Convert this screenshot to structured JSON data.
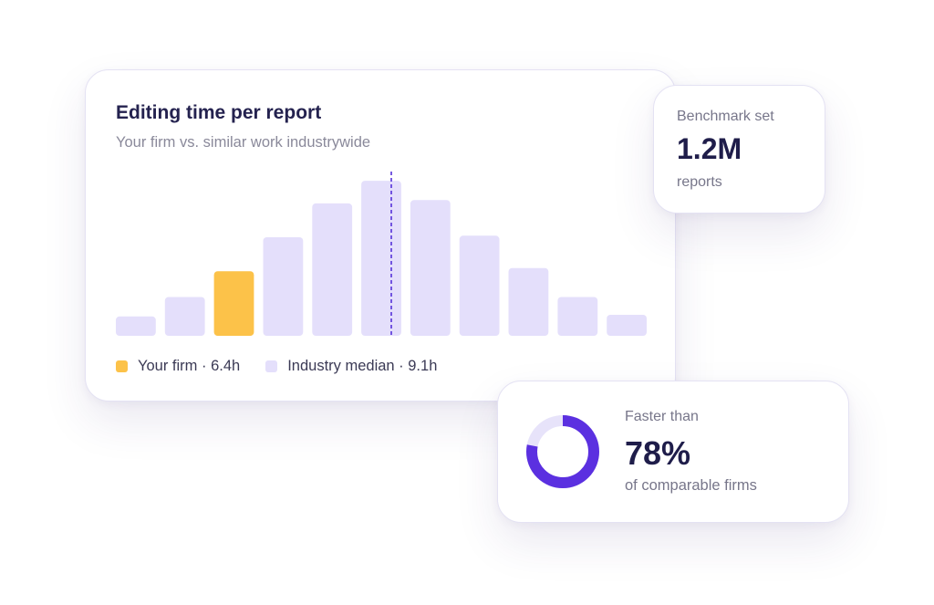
{
  "main_card": {
    "title": "Editing time per report",
    "subtitle": "Your firm vs. similar work industrywide"
  },
  "chart_data": {
    "type": "bar",
    "title": "Editing time per report",
    "subtitle": "Your firm vs. similar work industrywide",
    "values": [
      12,
      24,
      40,
      61,
      82,
      96,
      84,
      62,
      42,
      24,
      13
    ],
    "ylim": [
      0,
      100
    ],
    "highlight_index": 2,
    "median_marker_index": 5,
    "grid": false,
    "legend_position": "bottom-left",
    "colors": {
      "highlight": "#fcc249",
      "bar": "#e4dffb",
      "median_line": "#5532d9"
    },
    "legend": [
      {
        "label": "Your firm · 6.4h",
        "color": "#fcc249"
      },
      {
        "label": "Industry median · 9.1h",
        "color": "#e4dffb"
      }
    ]
  },
  "benchmark_card": {
    "label": "Benchmark set",
    "value": "1.2M",
    "unit": "reports"
  },
  "faster_card": {
    "label": "Faster than",
    "value": "78%",
    "description": "of comparable firms",
    "percent": 78,
    "ring_color": "#5b30e0",
    "ring_track_color": "#e7e3fa"
  }
}
